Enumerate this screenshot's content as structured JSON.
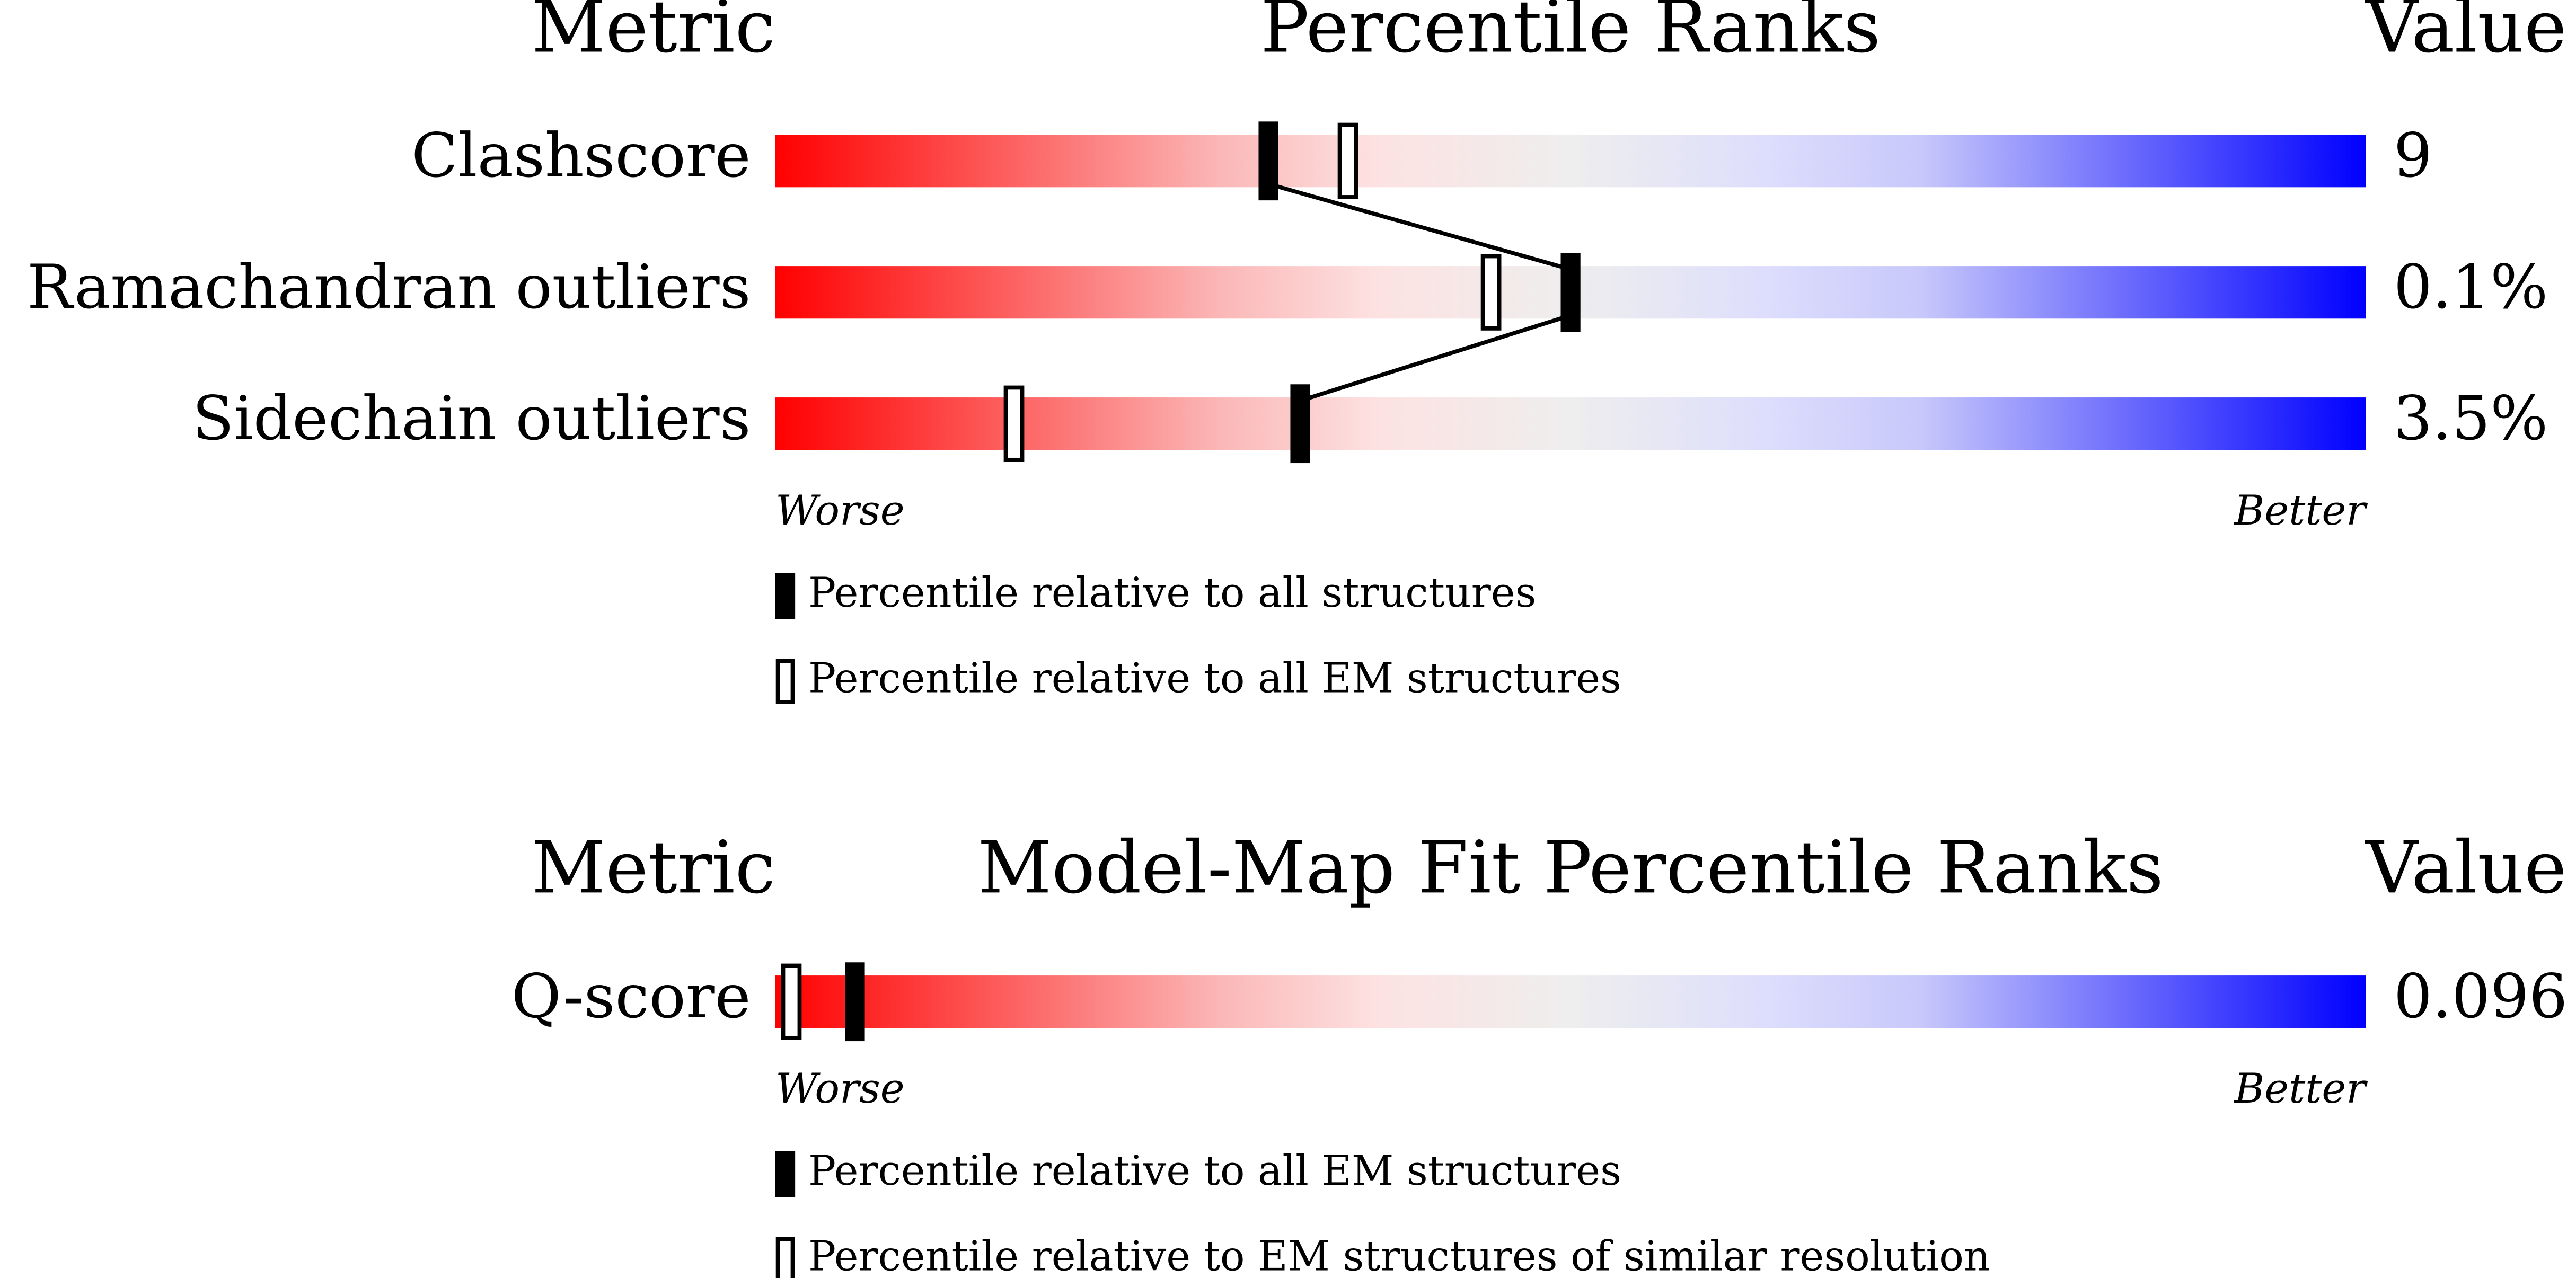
{
  "chart_data": [
    {
      "type": "percentile",
      "metric_header": "Metric",
      "title": "Percentile Ranks",
      "value_header": "Value",
      "categories": [
        "Clashscore",
        "Ramachandran outliers",
        "Sidechain outliers"
      ],
      "metric_values": [
        "9",
        "0.1%",
        "3.5%"
      ],
      "xlim": [
        0,
        100
      ],
      "x_labels": [
        "Worse",
        "Better"
      ],
      "series": [
        {
          "name": "Percentile relative to all structures",
          "filled": true,
          "color": "#000000",
          "values": [
            31,
            50,
            33
          ]
        },
        {
          "name": "Percentile relative to all EM structures",
          "filled": false,
          "color": "#000000",
          "values": [
            36,
            45,
            15
          ]
        }
      ]
    },
    {
      "type": "percentile",
      "metric_header": "Metric",
      "title": "Model-Map Fit Percentile Ranks",
      "value_header": "Value",
      "categories": [
        "Q-score"
      ],
      "metric_values": [
        "0.096"
      ],
      "xlim": [
        0,
        100
      ],
      "x_labels": [
        "Worse",
        "Better"
      ],
      "series": [
        {
          "name": "Percentile relative to all EM structures",
          "filled": true,
          "color": "#000000",
          "values": [
            5
          ]
        },
        {
          "name": "Percentile relative to EM structures of similar resolution",
          "filled": false,
          "color": "#000000",
          "values": [
            1
          ]
        }
      ]
    }
  ]
}
